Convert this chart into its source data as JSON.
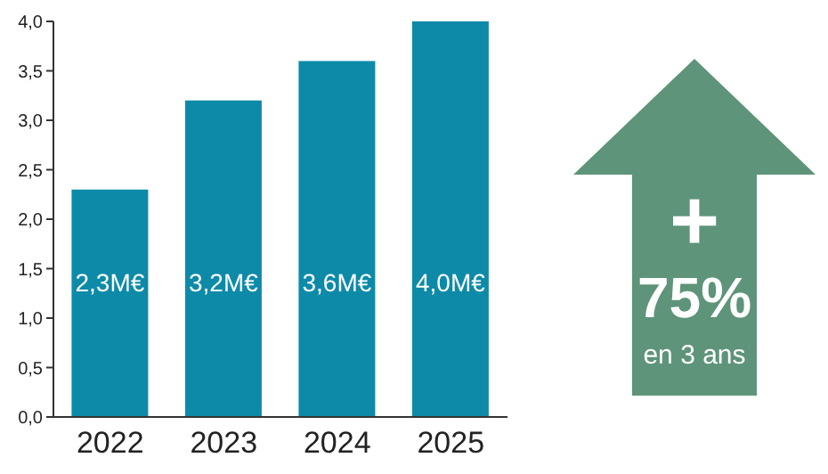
{
  "chart_data": {
    "type": "bar",
    "categories": [
      "2022",
      "2023",
      "2024",
      "2025"
    ],
    "values": [
      2.3,
      3.2,
      3.6,
      4.0
    ],
    "color": "#0e8aa9",
    "value_labels": [
      "2,3M€",
      "3,2M€",
      "3,6M€",
      "4,0M€"
    ],
    "ylim": [
      0,
      4
    ],
    "yticks": [
      {
        "value": 0,
        "label": "0,0"
      },
      {
        "value": 0.5,
        "label": "0,5"
      },
      {
        "value": 1,
        "label": "1,0"
      },
      {
        "value": 1.5,
        "label": "1,5"
      },
      {
        "value": 2,
        "label": "2,0"
      },
      {
        "value": 2.5,
        "label": "2,5"
      },
      {
        "value": 3,
        "label": "3,0"
      },
      {
        "value": 3.5,
        "label": "3,5"
      },
      {
        "value": 4,
        "label": "4,0"
      }
    ],
    "grid": false,
    "annotations": [
      "+",
      "75%",
      "en 3 ans"
    ]
  }
}
